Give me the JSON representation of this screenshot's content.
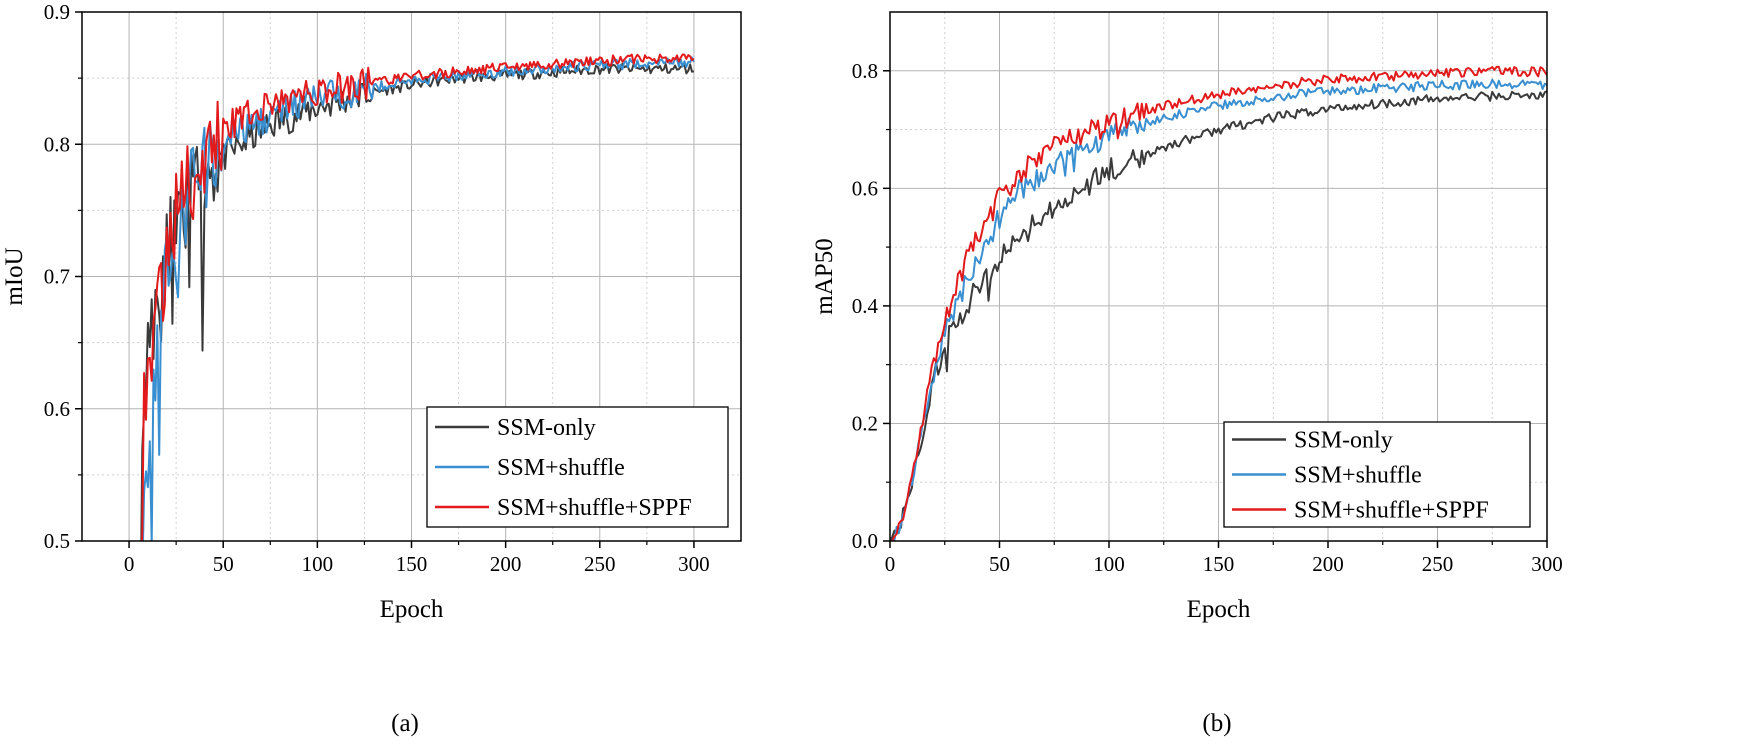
{
  "chart_data": [
    {
      "type": "line",
      "title": "",
      "xlabel": "Epoch",
      "ylabel": "mIoU",
      "caption": "(a)",
      "xlim": [
        -25,
        325
      ],
      "ylim": [
        0.5,
        0.9
      ],
      "x_ticks": [
        0,
        50,
        100,
        150,
        200,
        250,
        300
      ],
      "x_tick_labels": [
        "0",
        "50",
        "100",
        "150",
        "200",
        "250",
        "300"
      ],
      "y_ticks": [
        0.5,
        0.6,
        0.7,
        0.8,
        0.9
      ],
      "y_tick_labels": [
        "0.5",
        "0.6",
        "0.7",
        "0.8",
        "0.9"
      ],
      "grid": true,
      "legend_position": "bottom-right",
      "series": [
        {
          "name": "SSM-only",
          "color": "#3a3a3a",
          "x": [
            5,
            8,
            10,
            12,
            15,
            18,
            20,
            25,
            30,
            35,
            40,
            50,
            60,
            75,
            100,
            125,
            150,
            175,
            200,
            250,
            300
          ],
          "y": [
            0.53,
            0.6,
            0.65,
            0.66,
            0.68,
            0.71,
            0.72,
            0.74,
            0.755,
            0.765,
            0.78,
            0.79,
            0.8,
            0.815,
            0.828,
            0.838,
            0.845,
            0.85,
            0.852,
            0.857,
            0.857
          ]
        },
        {
          "name": "SSM+shuffle",
          "color": "#3a8fd0",
          "x": [
            7,
            10,
            12,
            15,
            18,
            20,
            25,
            30,
            35,
            40,
            50,
            60,
            75,
            100,
            125,
            150,
            175,
            200,
            250,
            300
          ],
          "y": [
            0.51,
            0.57,
            0.6,
            0.64,
            0.68,
            0.7,
            0.73,
            0.75,
            0.77,
            0.78,
            0.8,
            0.81,
            0.822,
            0.835,
            0.842,
            0.848,
            0.852,
            0.855,
            0.86,
            0.862
          ]
        },
        {
          "name": "SSM+shuffle+SPPF",
          "color": "#e31a1c",
          "x": [
            6,
            8,
            10,
            12,
            15,
            18,
            20,
            25,
            30,
            35,
            40,
            50,
            60,
            75,
            100,
            125,
            150,
            175,
            200,
            250,
            300
          ],
          "y": [
            0.5,
            0.6,
            0.63,
            0.65,
            0.68,
            0.7,
            0.72,
            0.75,
            0.765,
            0.78,
            0.79,
            0.81,
            0.82,
            0.83,
            0.84,
            0.846,
            0.851,
            0.855,
            0.858,
            0.863,
            0.866
          ]
        }
      ]
    },
    {
      "type": "line",
      "title": "",
      "xlabel": "Epoch",
      "ylabel": "mAP50",
      "caption": "(b)",
      "xlim": [
        0,
        300
      ],
      "ylim": [
        0,
        0.9
      ],
      "x_ticks": [
        0,
        50,
        100,
        150,
        200,
        250,
        300
      ],
      "x_tick_labels": [
        "0",
        "50",
        "100",
        "150",
        "200",
        "250",
        "300"
      ],
      "y_ticks": [
        0,
        0.2,
        0.4,
        0.6,
        0.8
      ],
      "y_tick_labels": [
        "0.0",
        "0.2",
        "0.4",
        "0.6",
        "0.8"
      ],
      "grid": true,
      "legend_position": "bottom-right",
      "series": [
        {
          "name": "SSM-only",
          "color": "#3a3a3a",
          "x": [
            0,
            5,
            10,
            15,
            20,
            25,
            30,
            40,
            50,
            60,
            75,
            100,
            125,
            150,
            175,
            200,
            225,
            250,
            275,
            300
          ],
          "y": [
            0,
            0.03,
            0.1,
            0.18,
            0.28,
            0.33,
            0.37,
            0.43,
            0.48,
            0.52,
            0.57,
            0.63,
            0.67,
            0.7,
            0.72,
            0.735,
            0.745,
            0.752,
            0.757,
            0.758
          ]
        },
        {
          "name": "SSM+shuffle",
          "color": "#3a8fd0",
          "x": [
            0,
            5,
            10,
            15,
            20,
            25,
            30,
            40,
            50,
            60,
            75,
            100,
            125,
            150,
            175,
            200,
            225,
            250,
            275,
            300
          ],
          "y": [
            0,
            0.03,
            0.1,
            0.2,
            0.29,
            0.35,
            0.4,
            0.48,
            0.55,
            0.6,
            0.64,
            0.69,
            0.72,
            0.74,
            0.755,
            0.765,
            0.77,
            0.775,
            0.778,
            0.775
          ]
        },
        {
          "name": "SSM+shuffle+SPPF",
          "color": "#e31a1c",
          "x": [
            0,
            5,
            10,
            15,
            20,
            25,
            30,
            40,
            50,
            60,
            75,
            100,
            125,
            150,
            175,
            200,
            225,
            250,
            275,
            300
          ],
          "y": [
            0,
            0.03,
            0.11,
            0.21,
            0.31,
            0.37,
            0.43,
            0.52,
            0.59,
            0.63,
            0.67,
            0.71,
            0.74,
            0.76,
            0.775,
            0.785,
            0.79,
            0.795,
            0.8,
            0.798
          ]
        }
      ]
    }
  ]
}
